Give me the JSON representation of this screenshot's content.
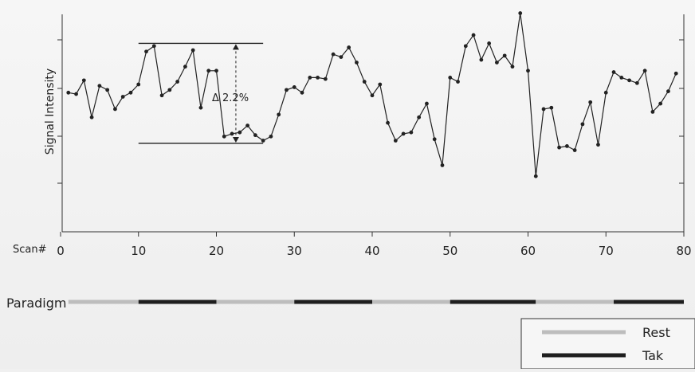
{
  "chart_data": {
    "type": "line",
    "ylabel": "Signal Intensity",
    "xlabel_prefix": "Scan#",
    "xlim": [
      0,
      80
    ],
    "xticks": [
      0,
      10,
      20,
      30,
      40,
      50,
      60,
      70,
      80
    ],
    "grid": false,
    "legend_position": "bottom-right",
    "annotation": "Δ 2.2%",
    "paradigm_label": "Paradigm",
    "paradigm_blocks": [
      {
        "start": 1,
        "end": 10,
        "condition": "Rest"
      },
      {
        "start": 10,
        "end": 20,
        "condition": "Tak"
      },
      {
        "start": 20,
        "end": 30,
        "condition": "Rest"
      },
      {
        "start": 30,
        "end": 40,
        "condition": "Tak"
      },
      {
        "start": 40,
        "end": 50,
        "condition": "Rest"
      },
      {
        "start": 50,
        "end": 61,
        "condition": "Tak"
      },
      {
        "start": 61,
        "end": 71,
        "condition": "Rest"
      },
      {
        "start": 71,
        "end": 80,
        "condition": "Tak"
      }
    ],
    "legend": [
      {
        "label": "Rest",
        "color": "#bdbdbd"
      },
      {
        "label": "Tak",
        "color": "#1e1e1e"
      }
    ],
    "series": [
      {
        "values": [
          [
            1,
            0.44
          ],
          [
            2,
            0.43
          ],
          [
            3,
            0.53
          ],
          [
            4,
            0.26
          ],
          [
            5,
            0.49
          ],
          [
            6,
            0.46
          ],
          [
            7,
            0.32
          ],
          [
            8,
            0.41
          ],
          [
            9,
            0.44
          ],
          [
            10,
            0.5
          ],
          [
            11,
            0.74
          ],
          [
            12,
            0.78
          ],
          [
            13,
            0.42
          ],
          [
            14,
            0.46
          ],
          [
            15,
            0.52
          ],
          [
            16,
            0.63
          ],
          [
            17,
            0.75
          ],
          [
            18,
            0.33
          ],
          [
            19,
            0.6
          ],
          [
            20,
            0.6
          ],
          [
            21,
            0.12
          ],
          [
            22,
            0.14
          ],
          [
            23,
            0.15
          ],
          [
            24,
            0.2
          ],
          [
            25,
            0.13
          ],
          [
            26,
            0.09
          ],
          [
            27,
            0.12
          ],
          [
            28,
            0.28
          ],
          [
            29,
            0.46
          ],
          [
            30,
            0.48
          ],
          [
            31,
            0.44
          ],
          [
            32,
            0.55
          ],
          [
            33,
            0.55
          ],
          [
            34,
            0.54
          ],
          [
            35,
            0.72
          ],
          [
            36,
            0.7
          ],
          [
            37,
            0.77
          ],
          [
            38,
            0.66
          ],
          [
            39,
            0.52
          ],
          [
            40,
            0.42
          ],
          [
            41,
            0.5
          ],
          [
            42,
            0.22
          ],
          [
            43,
            0.09
          ],
          [
            44,
            0.14
          ],
          [
            45,
            0.15
          ],
          [
            46,
            0.26
          ],
          [
            47,
            0.36
          ],
          [
            48,
            0.1
          ],
          [
            49,
            -0.09
          ],
          [
            50,
            0.55
          ],
          [
            51,
            0.52
          ],
          [
            52,
            0.78
          ],
          [
            53,
            0.86
          ],
          [
            54,
            0.68
          ],
          [
            55,
            0.8
          ],
          [
            56,
            0.66
          ],
          [
            57,
            0.71
          ],
          [
            58,
            0.63
          ],
          [
            59,
            1.02
          ],
          [
            60,
            0.6
          ],
          [
            61,
            -0.17
          ],
          [
            62,
            0.32
          ],
          [
            63,
            0.33
          ],
          [
            64,
            0.04
          ],
          [
            65,
            0.05
          ],
          [
            66,
            0.02
          ],
          [
            67,
            0.21
          ],
          [
            68,
            0.37
          ],
          [
            69,
            0.06
          ],
          [
            70,
            0.44
          ],
          [
            71,
            0.59
          ],
          [
            72,
            0.55
          ],
          [
            73,
            0.53
          ],
          [
            74,
            0.51
          ],
          [
            75,
            0.6
          ],
          [
            76,
            0.3
          ],
          [
            77,
            0.36
          ],
          [
            78,
            0.45
          ],
          [
            79,
            0.58
          ]
        ]
      }
    ]
  }
}
